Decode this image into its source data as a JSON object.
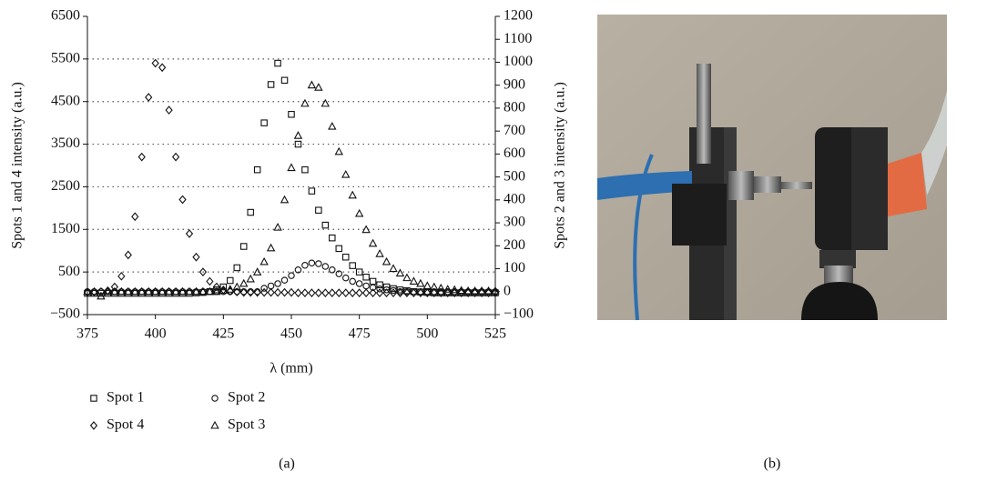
{
  "chart_data": {
    "type": "scatter",
    "xlabel": "λ (mm)",
    "ylabel": "Spots 1 and 4 intensity (a.u.)",
    "y2label": "Spots 2 and 3 intensity (a.u.)",
    "x": [
      375,
      377.5,
      380,
      382.5,
      385,
      387.5,
      390,
      392.5,
      395,
      397.5,
      400,
      402.5,
      405,
      407.5,
      410,
      412.5,
      415,
      417.5,
      420,
      422.5,
      425,
      427.5,
      430,
      432.5,
      435,
      437.5,
      440,
      442.5,
      445,
      447.5,
      450,
      452.5,
      455,
      457.5,
      460,
      462.5,
      465,
      467.5,
      470,
      472.5,
      475,
      477.5,
      480,
      482.5,
      485,
      487.5,
      490,
      492.5,
      495,
      497.5,
      500,
      502.5,
      505,
      507.5,
      510,
      512.5,
      515,
      517.5,
      520,
      522.5,
      525
    ],
    "xlim": [
      375,
      525
    ],
    "xticks": [
      375,
      400,
      425,
      450,
      475,
      500,
      525
    ],
    "ylim": [
      -500,
      6500
    ],
    "yticks": [
      {
        "value": -500,
        "label": "−500"
      },
      500,
      1500,
      2500,
      3500,
      4500,
      5500,
      6500
    ],
    "y2lim": [
      -100,
      1200
    ],
    "y2ticks": [
      {
        "value": -100,
        "label": "−100"
      },
      0,
      100,
      200,
      300,
      400,
      500,
      600,
      700,
      800,
      900,
      1000,
      1100,
      1200
    ],
    "grid": true,
    "series": [
      {
        "name": "Spot 1",
        "color": "#111111",
        "marker": "square",
        "values": [
          0,
          0,
          0,
          0,
          0,
          0,
          0,
          0,
          0,
          0,
          0,
          0,
          0,
          0,
          0,
          0,
          10,
          20,
          40,
          80,
          150,
          300,
          600,
          1100,
          1900,
          2900,
          4000,
          4900,
          5400,
          5000,
          4200,
          3500,
          2900,
          2400,
          1950,
          1600,
          1300,
          1050,
          850,
          650,
          500,
          380,
          280,
          200,
          150,
          110,
          80,
          60,
          40,
          30,
          20,
          10,
          10,
          10,
          10,
          10,
          10,
          10,
          10,
          10,
          10
        ]
      },
      {
        "name": "Spot 2",
        "color": "#111111",
        "marker": "circle",
        "axis": "y2",
        "values": [
          0,
          0,
          0,
          0,
          0,
          0,
          0,
          0,
          0,
          0,
          0,
          0,
          0,
          0,
          0,
          0,
          0,
          0,
          0,
          0,
          0,
          0,
          0,
          0,
          0,
          0,
          15,
          25,
          35,
          50,
          70,
          95,
          115,
          125,
          122,
          110,
          95,
          78,
          60,
          45,
          35,
          25,
          18,
          12,
          8,
          5,
          0,
          0,
          0,
          0,
          0,
          0,
          0,
          0,
          0,
          0,
          0,
          0,
          0,
          0,
          0
        ]
      },
      {
        "name": "Spot 4",
        "color": "#111111",
        "marker": "diamond",
        "values": [
          20,
          30,
          40,
          60,
          150,
          400,
          900,
          1800,
          3200,
          4600,
          5400,
          5300,
          4300,
          3200,
          2200,
          1400,
          850,
          500,
          280,
          150,
          80,
          50,
          30,
          20,
          20,
          20,
          20,
          20,
          20,
          20,
          20,
          10,
          10,
          10,
          10,
          10,
          10,
          10,
          10,
          10,
          10,
          10,
          10,
          10,
          10,
          10,
          10,
          10,
          10,
          10,
          10,
          10,
          10,
          10,
          10,
          10,
          10,
          10,
          10,
          10,
          10
        ]
      },
      {
        "name": "Spot 3",
        "color": "#111111",
        "marker": "triangle",
        "axis": "y2",
        "values": [
          0,
          0,
          -20,
          0,
          0,
          0,
          0,
          0,
          0,
          0,
          0,
          0,
          0,
          0,
          0,
          0,
          0,
          0,
          0,
          0,
          5,
          10,
          20,
          35,
          55,
          85,
          130,
          190,
          280,
          400,
          540,
          680,
          820,
          900,
          890,
          820,
          720,
          610,
          510,
          420,
          340,
          270,
          210,
          165,
          130,
          100,
          80,
          60,
          45,
          35,
          25,
          20,
          15,
          10,
          8,
          5,
          3,
          3,
          3,
          3,
          3
        ]
      }
    ]
  },
  "captions": [
    "(a)",
    "(b)"
  ]
}
